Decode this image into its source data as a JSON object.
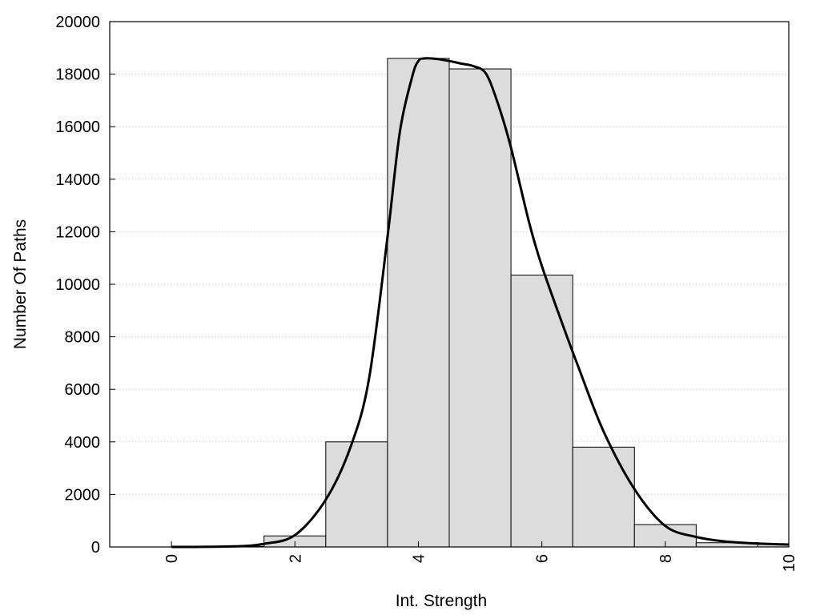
{
  "chart_data": {
    "type": "bar",
    "title": "",
    "xlabel": "Int. Strength",
    "ylabel": "Number Of Paths",
    "xlim": [
      -1,
      10
    ],
    "ylim": [
      0,
      20000
    ],
    "x_ticks": [
      0,
      2,
      4,
      6,
      8,
      10
    ],
    "y_ticks": [
      0,
      2000,
      4000,
      6000,
      8000,
      10000,
      12000,
      14000,
      16000,
      18000,
      20000
    ],
    "x_tick_rotation": "vertical",
    "grid": "horizontal-dotted",
    "legend": "none",
    "bins": [
      {
        "center": 0,
        "value": 0
      },
      {
        "center": 1,
        "value": 20
      },
      {
        "center": 2,
        "value": 420
      },
      {
        "center": 3,
        "value": 4000
      },
      {
        "center": 4,
        "value": 18600
      },
      {
        "center": 5,
        "value": 18200
      },
      {
        "center": 6,
        "value": 10350
      },
      {
        "center": 7,
        "value": 3800
      },
      {
        "center": 8,
        "value": 850
      },
      {
        "center": 9,
        "value": 160
      },
      {
        "center": 10,
        "value": 100
      }
    ],
    "bin_width": 1,
    "curve": {
      "x": [
        0,
        1,
        1.5,
        2,
        2.5,
        2.9,
        3.2,
        3.5,
        3.7,
        3.9,
        4.0,
        4.1,
        4.3,
        4.5,
        4.7,
        4.9,
        5.1,
        5.3,
        5.5,
        5.8,
        6.0,
        6.3,
        6.6,
        7.0,
        7.5,
        8.0,
        8.5,
        9.0,
        9.5,
        10.0
      ],
      "y": [
        0,
        20,
        120,
        450,
        1800,
        3800,
        6400,
        11800,
        15800,
        17900,
        18500,
        18600,
        18580,
        18500,
        18400,
        18300,
        18000,
        16800,
        15200,
        12300,
        10700,
        8700,
        6800,
        4400,
        2200,
        800,
        380,
        200,
        130,
        90
      ]
    },
    "colors": {
      "bar_fill": "#dcdcdc",
      "bar_stroke": "#000000",
      "curve": "#000000",
      "grid": "#bbbbbb"
    }
  }
}
